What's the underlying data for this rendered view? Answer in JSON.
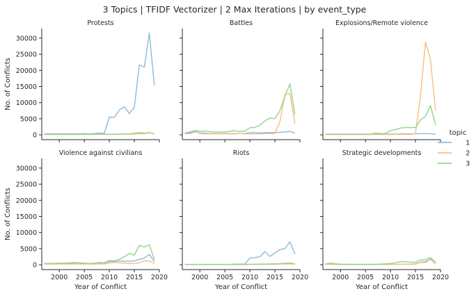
{
  "figure": {
    "suptitle": "3 Topics | TFIDF Vectorizer | 2 Max Iterations | by event_type"
  },
  "legend": {
    "title": "topic",
    "entries": [
      {
        "name": "1",
        "color": "#8dbbdb"
      },
      {
        "name": "2",
        "color": "#f9bd83"
      },
      {
        "name": "3",
        "color": "#93d48b"
      }
    ]
  },
  "chart_data": {
    "type": "line",
    "shared_axes": true,
    "x": [
      1997,
      1998,
      1999,
      2000,
      2001,
      2002,
      2003,
      2004,
      2005,
      2006,
      2007,
      2008,
      2009,
      2010,
      2011,
      2012,
      2013,
      2014,
      2015,
      2016,
      2017,
      2018,
      2019
    ],
    "xlim": [
      1996.5,
      2020
    ],
    "ylim": [
      -1500,
      33000
    ],
    "xticks": [
      2000,
      2005,
      2010,
      2015,
      2020
    ],
    "yticks": [
      0,
      5000,
      10000,
      15000,
      20000,
      25000,
      30000
    ],
    "xlabel": "Year of Conflict",
    "ylabel": "No. of Conflicts",
    "legend_position": "right",
    "panels": [
      {
        "title": "Protests",
        "series": [
          {
            "name": "1",
            "values": [
              300,
              300,
              300,
              300,
              300,
              300,
              300,
              300,
              400,
              300,
              400,
              500,
              500,
              5500,
              5400,
              7700,
              8700,
              6600,
              8500,
              21700,
              21000,
              31600,
              15300
            ]
          },
          {
            "name": "2",
            "values": [
              100,
              100,
              100,
              100,
              100,
              100,
              100,
              100,
              150,
              100,
              150,
              150,
              150,
              150,
              150,
              200,
              200,
              200,
              250,
              400,
              300,
              800,
              250
            ]
          },
          {
            "name": "3",
            "values": [
              150,
              150,
              150,
              150,
              150,
              150,
              150,
              150,
              200,
              150,
              200,
              200,
              200,
              200,
              200,
              250,
              300,
              300,
              450,
              700,
              500,
              650,
              300
            ]
          }
        ]
      },
      {
        "title": "Battles",
        "series": [
          {
            "name": "1",
            "values": [
              400,
              400,
              1000,
              600,
              500,
              400,
              400,
              400,
              400,
              400,
              400,
              400,
              400,
              700,
              700,
              600,
              700,
              700,
              700,
              800,
              900,
              1100,
              500
            ]
          },
          {
            "name": "2",
            "values": [
              500,
              700,
              1300,
              400,
              300,
              300,
              300,
              300,
              300,
              300,
              300,
              400,
              300,
              300,
              300,
              300,
              400,
              400,
              400,
              4000,
              12500,
              12800,
              3500
            ]
          },
          {
            "name": "3",
            "values": [
              600,
              900,
              1300,
              1100,
              1200,
              1000,
              900,
              900,
              900,
              1100,
              1300,
              1000,
              1200,
              2200,
              2300,
              3000,
              4300,
              5200,
              5000,
              7500,
              12000,
              15800,
              6300
            ]
          }
        ]
      },
      {
        "title": "Explosions/Remote violence",
        "series": [
          {
            "name": "1",
            "values": [
              200,
              200,
              200,
              200,
              200,
              200,
              200,
              200,
              200,
              200,
              250,
              250,
              250,
              250,
              250,
              300,
              300,
              300,
              300,
              400,
              400,
              350,
              200
            ]
          },
          {
            "name": "2",
            "values": [
              100,
              100,
              100,
              100,
              100,
              100,
              100,
              100,
              100,
              100,
              100,
              100,
              100,
              100,
              150,
              150,
              150,
              150,
              300,
              12000,
              28800,
              23400,
              7500
            ]
          },
          {
            "name": "3",
            "values": [
              200,
              200,
              200,
              250,
              250,
              200,
              250,
              200,
              200,
              250,
              500,
              400,
              400,
              1300,
              1600,
              2100,
              2300,
              2200,
              2300,
              4600,
              5700,
              9100,
              3100
            ]
          }
        ]
      },
      {
        "title": "Violence against civilians",
        "series": [
          {
            "name": "1",
            "values": [
              300,
              300,
              300,
              300,
              300,
              400,
              400,
              300,
              300,
              300,
              400,
              600,
              500,
              1000,
              1000,
              1200,
              1100,
              1100,
              1200,
              1600,
              2100,
              3200,
              1000
            ]
          },
          {
            "name": "2",
            "values": [
              200,
              200,
              200,
              200,
              200,
              200,
              300,
              200,
              200,
              200,
              200,
              300,
              200,
              500,
              700,
              600,
              500,
              400,
              400,
              600,
              1200,
              1200,
              400
            ]
          },
          {
            "name": "3",
            "values": [
              400,
              400,
              400,
              500,
              500,
              600,
              700,
              600,
              500,
              400,
              500,
              700,
              600,
              1300,
              1200,
              1700,
              2500,
              3500,
              3000,
              6000,
              5500,
              6200,
              1600
            ]
          }
        ]
      },
      {
        "title": "Riots",
        "series": [
          {
            "name": "1",
            "values": [
              100,
              100,
              100,
              100,
              100,
              100,
              100,
              100,
              100,
              100,
              200,
              200,
              200,
              2100,
              2200,
              2500,
              4100,
              2600,
              3600,
              4700,
              5000,
              7100,
              3300
            ]
          },
          {
            "name": "2",
            "values": [
              50,
              50,
              50,
              50,
              50,
              50,
              50,
              50,
              50,
              50,
              50,
              50,
              50,
              100,
              100,
              100,
              150,
              150,
              150,
              200,
              250,
              300,
              150
            ]
          },
          {
            "name": "3",
            "values": [
              100,
              100,
              100,
              100,
              100,
              100,
              100,
              100,
              100,
              100,
              150,
              150,
              100,
              150,
              150,
              200,
              200,
              250,
              300,
              350,
              450,
              550,
              300
            ]
          }
        ]
      },
      {
        "title": "Strategic developments",
        "series": [
          {
            "name": "1",
            "values": [
              150,
              150,
              100,
              100,
              100,
              100,
              100,
              100,
              100,
              100,
              100,
              100,
              100,
              100,
              100,
              150,
              150,
              200,
              300,
              800,
              1000,
              1800,
              400
            ]
          },
          {
            "name": "2",
            "values": [
              100,
              300,
              100,
              100,
              100,
              100,
              100,
              100,
              100,
              100,
              100,
              100,
              100,
              100,
              100,
              150,
              150,
              150,
              200,
              700,
              700,
              1700,
              300
            ]
          },
          {
            "name": "3",
            "values": [
              250,
              500,
              300,
              200,
              150,
              100,
              100,
              100,
              100,
              100,
              150,
              200,
              300,
              400,
              600,
              1000,
              900,
              800,
              800,
              1500,
              1600,
              2200,
              700
            ]
          }
        ]
      }
    ]
  }
}
